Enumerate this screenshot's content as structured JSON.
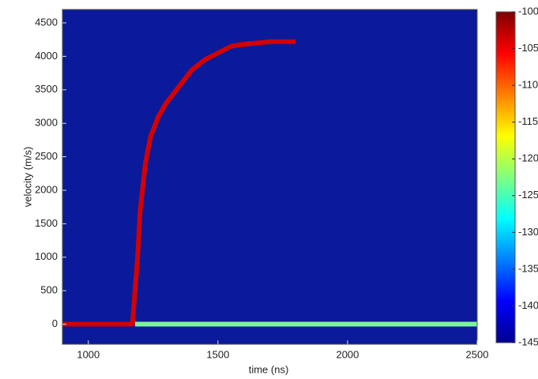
{
  "chart_data": {
    "type": "spectrogram",
    "xlabel": "time (ns)",
    "ylabel": "velocity (m/s)",
    "xlim": [
      900,
      2500
    ],
    "xticks": [
      1000,
      1500,
      2000,
      2500
    ],
    "ylim": [
      -300,
      4700
    ],
    "yticks": [
      0,
      500,
      1000,
      1500,
      2000,
      2500,
      3000,
      3500,
      4000,
      4500
    ],
    "background": "#0a1a9a",
    "grid": false,
    "series": [
      {
        "color": "#d40000",
        "x": [
          900,
          1170,
          1180,
          1190,
          1200,
          1220,
          1240,
          1270,
          1300,
          1350,
          1400,
          1450,
          1500,
          1550,
          1600,
          1700,
          1800
        ],
        "values": [
          0,
          0,
          500,
          1000,
          1700,
          2400,
          2800,
          3100,
          3300,
          3550,
          3800,
          3950,
          4050,
          4150,
          4180,
          4220,
          4220
        ]
      },
      {
        "color": "#7cf59a",
        "x": [
          1180,
          2500
        ],
        "values": [
          0,
          0
        ]
      }
    ],
    "colorbar": {
      "clim": [
        -145,
        -100
      ],
      "ticks": [
        -100,
        -105,
        -110,
        -115,
        -120,
        -125,
        -130,
        -135,
        -140,
        -145
      ]
    }
  }
}
